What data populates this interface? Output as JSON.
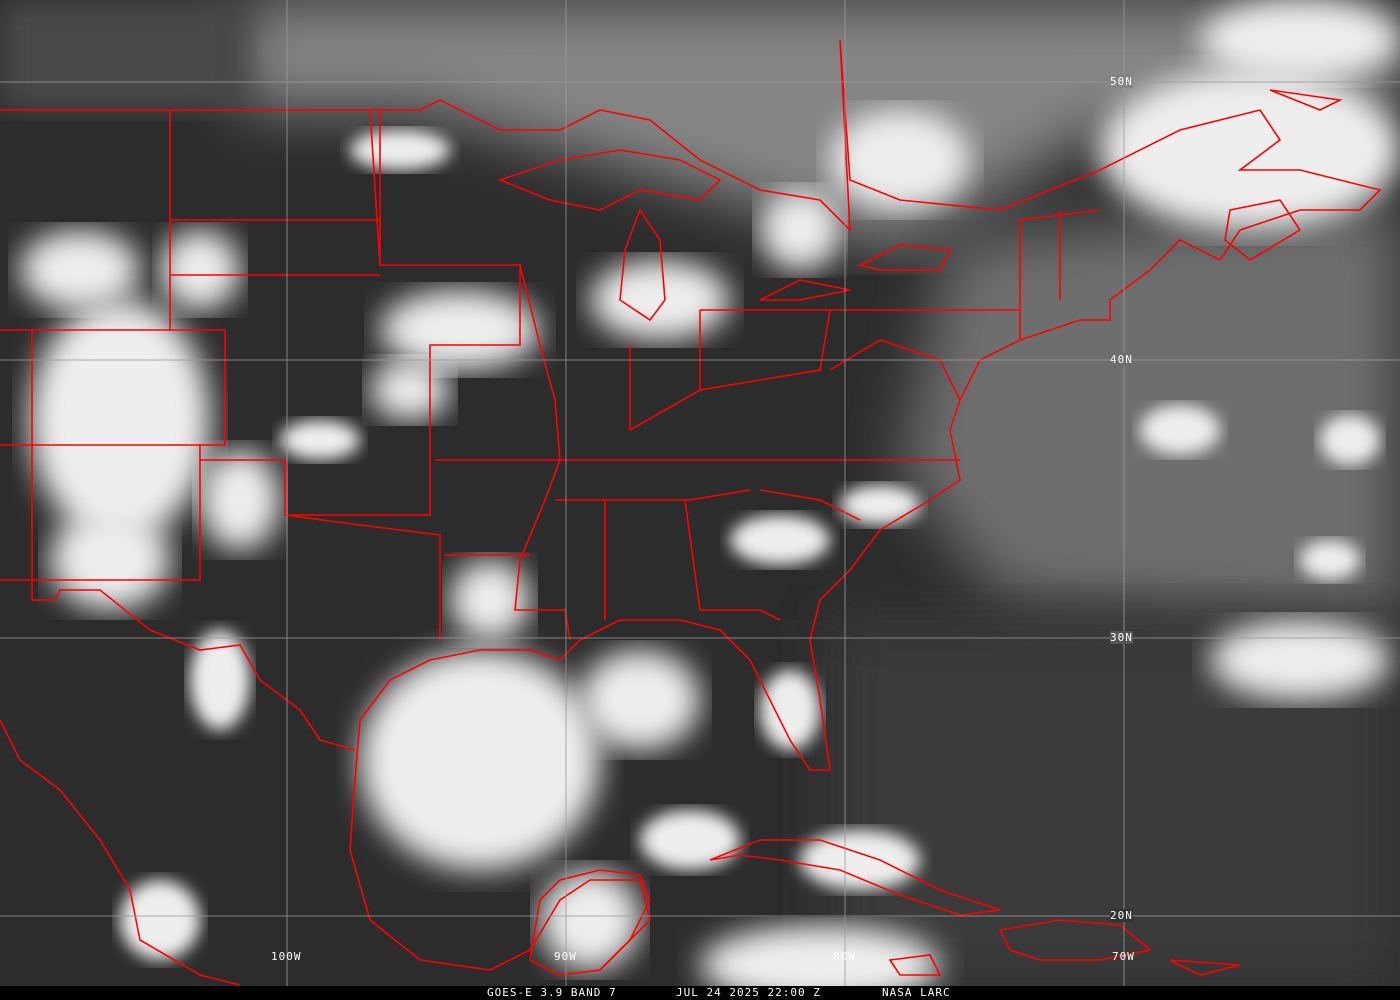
{
  "caption": {
    "satellite": "GOES-E 3.9 BAND 7",
    "datetime": "JUL 24 2025 22:00 Z",
    "source": "NASA LARC"
  },
  "grid": {
    "latitudes": [
      "50N",
      "40N",
      "30N",
      "20N"
    ],
    "longitudes": [
      "100W",
      "90W",
      "80W",
      "70W"
    ]
  },
  "colors": {
    "borders": "#ff0000",
    "grid": "#9a9a9a",
    "clouds": "#f2f2f2"
  }
}
